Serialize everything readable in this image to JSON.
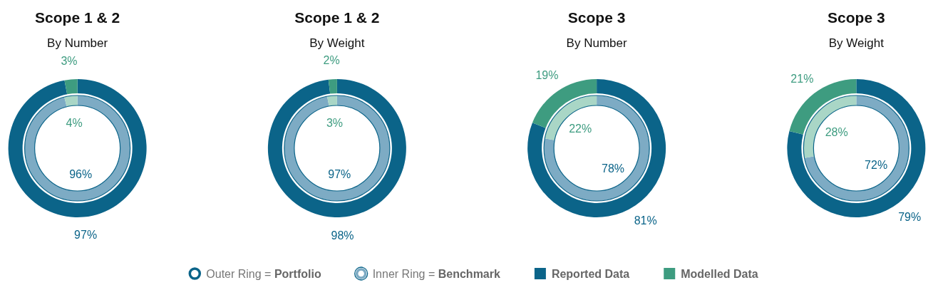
{
  "chart_data": [
    {
      "type": "donut",
      "title": "Scope 1 & 2",
      "subtitle": "By Number",
      "categories": [
        "Reported Data",
        "Modelled Data"
      ],
      "legend": "bottom",
      "series": [
        {
          "name": "Outer Ring = Portfolio",
          "values": [
            97,
            3
          ],
          "value_labels": [
            "97%",
            "3%"
          ],
          "colors": [
            "#0b6489",
            "#3e9c80"
          ]
        }
      ]
    },
    {
      "type": "donut",
      "categories": [
        null,
        null
      ],
      "legend": "bottom",
      "series": [
        {
          "name": "Inner Ring = Benchmark",
          "values": [
            96,
            4
          ],
          "value_labels": [
            "96%",
            "4%"
          ],
          "colors": [
            "#7dabc4",
            "#a9d6c6"
          ]
        }
      ]
    },
    {
      "type": "donut",
      "title": "Scope 1 & 2",
      "subtitle": "By Weight",
      "categories": [
        null,
        null
      ],
      "series": [
        {
          "values": [
            98,
            2
          ],
          "value_labels": [
            "98%",
            "2%"
          ],
          "colors": [
            "#0b6489",
            "#3e9c80"
          ]
        }
      ]
    },
    {
      "type": "donut",
      "categories": [
        null,
        null
      ],
      "series": [
        {
          "values": [
            97,
            3
          ],
          "value_labels": [
            "97%",
            "3%"
          ],
          "colors": [
            "#7dabc4",
            "#a9d6c6"
          ]
        }
      ]
    },
    {
      "type": "donut",
      "title": "Scope 3",
      "subtitle": "By Number",
      "categories": [
        null,
        null
      ],
      "series": [
        {
          "values": [
            81,
            19
          ],
          "value_labels": [
            "81%",
            "19%"
          ],
          "colors": [
            "#0b6489",
            "#3e9c80"
          ]
        }
      ]
    },
    {
      "type": "donut",
      "categories": [
        null,
        null
      ],
      "series": [
        {
          "values": [
            78,
            22
          ],
          "value_labels": [
            "78%",
            "22%"
          ],
          "colors": [
            "#7dabc4",
            "#a9d6c6"
          ]
        }
      ]
    },
    {
      "type": "donut",
      "title": "Scope 3",
      "subtitle": "By Weight",
      "categories": [
        null,
        null
      ],
      "series": [
        {
          "values": [
            79,
            21
          ],
          "value_labels": [
            "79%",
            "21%"
          ],
          "colors": [
            "#0b6489",
            "#3e9c80"
          ]
        }
      ]
    },
    {
      "type": "donut",
      "categories": [
        null,
        null
      ],
      "series": [
        {
          "values": [
            72,
            28
          ],
          "value_labels": [
            "72%",
            "28%"
          ],
          "colors": [
            "#7dabc4",
            "#a9d6c6"
          ]
        }
      ]
    }
  ]
}
